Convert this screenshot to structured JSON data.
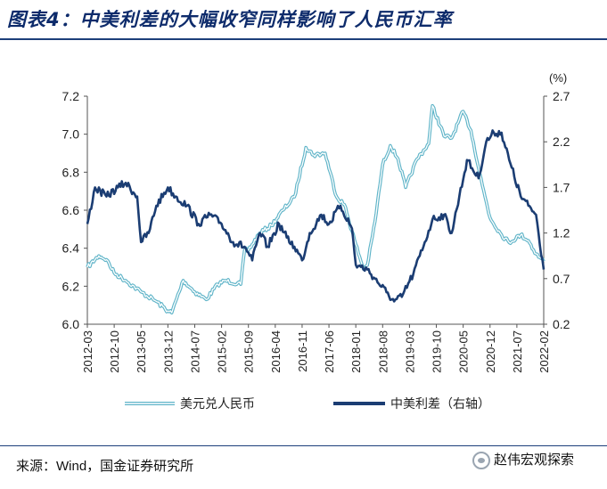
{
  "header": {
    "title": "图表4：中美利差的大幅收窄同样影响了人民币汇率"
  },
  "footer": {
    "source": "来源：Wind，国金证券研究所",
    "badge": "赵伟宏观探索",
    "badge_icon": "wechat-icon"
  },
  "colors": {
    "usdcny": "#5fb4c8",
    "spread": "#1b3d73",
    "rule": "#1c3f7a",
    "title": "#0d2b6b"
  },
  "chart_data": {
    "type": "line",
    "right_unit": "(%)",
    "left_ylim": [
      6.0,
      7.2
    ],
    "left_ticks": [
      "6.0",
      "6.2",
      "6.4",
      "6.6",
      "6.8",
      "7.0",
      "7.2"
    ],
    "right_ylim": [
      0.2,
      2.7
    ],
    "right_ticks": [
      "0.2",
      "0.7",
      "1.2",
      "1.7",
      "2.2",
      "2.7"
    ],
    "x_ticks": [
      "2012-03",
      "2012-10",
      "2013-05",
      "2013-12",
      "2014-07",
      "2015-02",
      "2015-09",
      "2016-04",
      "2016-11",
      "2017-06",
      "2018-01",
      "2018-08",
      "2019-03",
      "2019-10",
      "2020-05",
      "2020-12",
      "2021-07",
      "2022-02"
    ],
    "grid": false,
    "legend_position": "bottom",
    "series": [
      {
        "name": "美元兑人民币",
        "axis": "left",
        "style": "double-line",
        "x": [
          "2012-03",
          "2012-06",
          "2012-08",
          "2012-10",
          "2013-01",
          "2013-05",
          "2013-09",
          "2013-12",
          "2014-01",
          "2014-04",
          "2014-07",
          "2014-10",
          "2015-01",
          "2015-03",
          "2015-07",
          "2015-08",
          "2015-09",
          "2015-12",
          "2016-03",
          "2016-06",
          "2016-09",
          "2016-12",
          "2017-02",
          "2017-05",
          "2017-08",
          "2017-10",
          "2018-01",
          "2018-03",
          "2018-04",
          "2018-06",
          "2018-08",
          "2018-10",
          "2018-12",
          "2019-02",
          "2019-05",
          "2019-08",
          "2019-09",
          "2019-12",
          "2020-02",
          "2020-05",
          "2020-07",
          "2020-10",
          "2020-12",
          "2021-03",
          "2021-05",
          "2021-08",
          "2021-10",
          "2021-12",
          "2022-02"
        ],
        "values": [
          6.3,
          6.36,
          6.34,
          6.27,
          6.23,
          6.17,
          6.12,
          6.07,
          6.06,
          6.23,
          6.17,
          6.13,
          6.21,
          6.23,
          6.21,
          6.39,
          6.39,
          6.48,
          6.52,
          6.6,
          6.67,
          6.93,
          6.89,
          6.9,
          6.67,
          6.63,
          6.42,
          6.29,
          6.31,
          6.54,
          6.84,
          6.94,
          6.87,
          6.72,
          6.87,
          6.95,
          7.15,
          6.99,
          6.98,
          7.12,
          7.02,
          6.73,
          6.56,
          6.47,
          6.43,
          6.47,
          6.44,
          6.37,
          6.33
        ]
      },
      {
        "name": "中美利差（右轴）",
        "axis": "right",
        "style": "solid",
        "x": [
          "2012-03",
          "2012-05",
          "2012-08",
          "2012-11",
          "2013-01",
          "2013-04",
          "2013-05",
          "2013-07",
          "2013-09",
          "2013-12",
          "2014-02",
          "2014-05",
          "2014-08",
          "2014-11",
          "2015-02",
          "2015-05",
          "2015-08",
          "2015-10",
          "2015-12",
          "2016-02",
          "2016-05",
          "2016-07",
          "2016-09",
          "2016-11",
          "2017-01",
          "2017-04",
          "2017-06",
          "2017-09",
          "2017-12",
          "2018-01",
          "2018-04",
          "2018-06",
          "2018-09",
          "2018-11",
          "2019-01",
          "2019-04",
          "2019-07",
          "2019-09",
          "2019-12",
          "2020-02",
          "2020-04",
          "2020-06",
          "2020-09",
          "2020-11",
          "2021-01",
          "2021-03",
          "2021-05",
          "2021-08",
          "2021-10",
          "2021-12",
          "2022-02"
        ],
        "values": [
          1.3,
          1.7,
          1.6,
          1.7,
          1.75,
          1.6,
          1.1,
          1.2,
          1.5,
          1.7,
          1.6,
          1.5,
          1.3,
          1.4,
          1.3,
          1.1,
          1.05,
          0.9,
          1.2,
          1.05,
          1.3,
          1.15,
          1.05,
          0.9,
          1.2,
          1.4,
          1.3,
          1.5,
          1.25,
          0.85,
          0.8,
          0.7,
          0.55,
          0.45,
          0.5,
          0.75,
          1.1,
          1.35,
          1.4,
          1.2,
          1.6,
          2.0,
          1.8,
          2.2,
          2.3,
          2.3,
          2.0,
          1.6,
          1.5,
          1.4,
          0.8
        ]
      }
    ]
  }
}
